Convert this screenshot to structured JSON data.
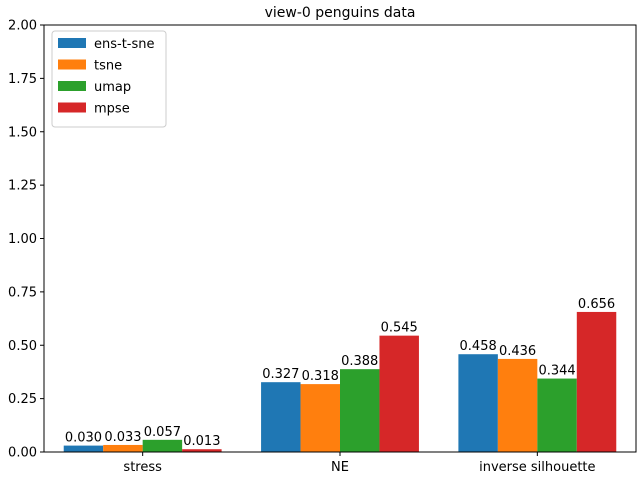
{
  "chart_data": {
    "type": "bar",
    "title": "view-0 penguins data",
    "xlabel": "",
    "ylabel": "",
    "categories": [
      "stress",
      "NE",
      "inverse silhouette"
    ],
    "series": [
      {
        "name": "ens-t-sne",
        "color": "#1f77b4",
        "values": [
          0.03,
          0.327,
          0.458
        ],
        "labels": [
          "0.030",
          "0.327",
          "0.458"
        ]
      },
      {
        "name": "tsne",
        "color": "#ff7f0e",
        "values": [
          0.033,
          0.318,
          0.436
        ],
        "labels": [
          "0.033",
          "0.318",
          "0.436"
        ]
      },
      {
        "name": "umap",
        "color": "#2ca02c",
        "values": [
          0.057,
          0.388,
          0.344
        ],
        "labels": [
          "0.057",
          "0.388",
          "0.344"
        ]
      },
      {
        "name": "mpse",
        "color": "#d62728",
        "values": [
          0.013,
          0.545,
          0.656
        ],
        "labels": [
          "0.013",
          "0.545",
          "0.656"
        ]
      }
    ],
    "ylim": [
      0,
      2.0
    ],
    "yticks": [
      "0.00",
      "0.25",
      "0.50",
      "0.75",
      "1.00",
      "1.25",
      "1.50",
      "1.75",
      "2.00"
    ],
    "grid": false,
    "legend": "top-left"
  }
}
